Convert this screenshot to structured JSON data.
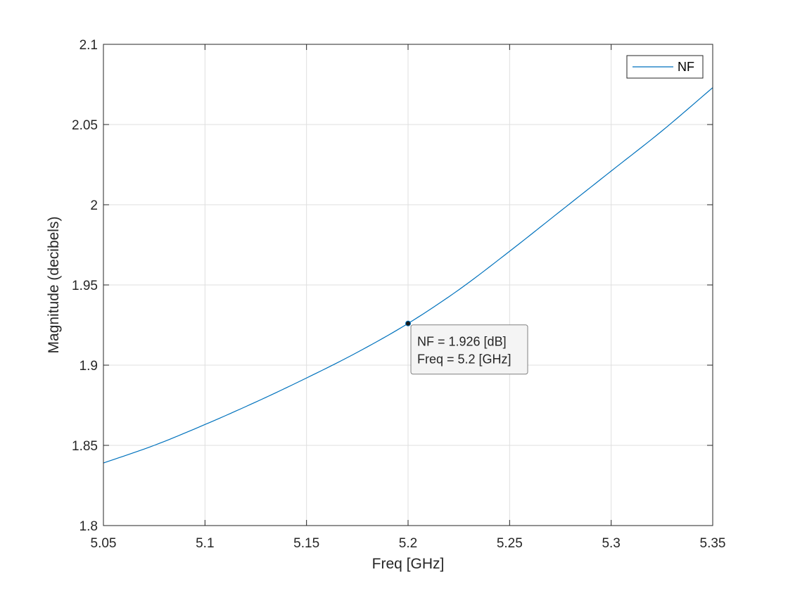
{
  "chart_data": {
    "type": "line",
    "title": "",
    "xlabel": "Freq [GHz]",
    "ylabel": "Magnitude (decibels)",
    "xlim": [
      5.05,
      5.35
    ],
    "ylim": [
      1.8,
      2.1
    ],
    "xticks": [
      "5.05",
      "5.1",
      "5.15",
      "5.2",
      "5.25",
      "5.3",
      "5.35"
    ],
    "yticks": [
      "1.8",
      "1.85",
      "1.9",
      "1.95",
      "2",
      "2.05",
      "2.1"
    ],
    "grid": true,
    "legend": {
      "placement": "top-right",
      "entries": [
        "NF"
      ]
    },
    "series": [
      {
        "name": "NF",
        "color": "#0072BD",
        "x": [
          5.05,
          5.075,
          5.1,
          5.125,
          5.15,
          5.175,
          5.2,
          5.225,
          5.25,
          5.275,
          5.3,
          5.325,
          5.35
        ],
        "y": [
          1.839,
          1.85,
          1.863,
          1.877,
          1.892,
          1.908,
          1.926,
          1.947,
          1.971,
          1.996,
          2.021,
          2.046,
          2.073
        ]
      }
    ],
    "annotations": [
      {
        "x": 5.2,
        "y": 1.926,
        "lines": [
          "NF = 1.926 [dB]",
          "Freq = 5.2 [GHz]"
        ]
      }
    ]
  }
}
